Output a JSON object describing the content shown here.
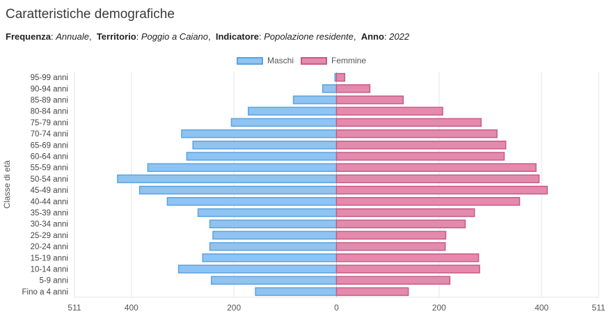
{
  "title": "Caratteristiche demografiche",
  "filters": {
    "frequency_label": "Frequenza",
    "frequency_value": "Annuale",
    "territory_label": "Territorio",
    "territory_value": "Poggio a Caiano",
    "indicator_label": "Indicatore",
    "indicator_value": "Popolazione residente",
    "year_label": "Anno",
    "year_value": "2022"
  },
  "chart_data": {
    "type": "bar",
    "orientation": "horizontal",
    "ylabel": "Classe di età",
    "categories": [
      "95-99 anni",
      "90-94 anni",
      "85-89 anni",
      "80-84 anni",
      "75-79 anni",
      "70-74 anni",
      "65-69 anni",
      "60-64 anni",
      "55-59 anni",
      "50-54 anni",
      "45-49 anni",
      "40-44 anni",
      "35-39 anni",
      "30-34 anni",
      "25-29 anni",
      "20-24 anni",
      "15-19 anni",
      "10-14 anni",
      "5-9 anni",
      "Fino a 4 anni"
    ],
    "series": [
      {
        "name": "Maschi",
        "color": "#8fc3f1",
        "stroke": "#5ba3e0",
        "values": [
          3,
          27,
          84,
          172,
          205,
          302,
          280,
          292,
          368,
          427,
          384,
          330,
          270,
          247,
          241,
          247,
          261,
          308,
          244,
          158
        ]
      },
      {
        "name": "Femmine",
        "color": "#e48aad",
        "stroke": "#c75b86",
        "values": [
          16,
          65,
          130,
          207,
          282,
          313,
          330,
          327,
          389,
          395,
          411,
          357,
          269,
          251,
          213,
          212,
          277,
          279,
          221,
          140
        ]
      }
    ],
    "xlim": [
      -511,
      511
    ],
    "xticks": [
      -511,
      -400,
      -200,
      0,
      200,
      400,
      511
    ],
    "xtick_labels": [
      "511",
      "400",
      "200",
      "0",
      "200",
      "400",
      "511"
    ],
    "legend_position": "top-center",
    "grid": true
  }
}
